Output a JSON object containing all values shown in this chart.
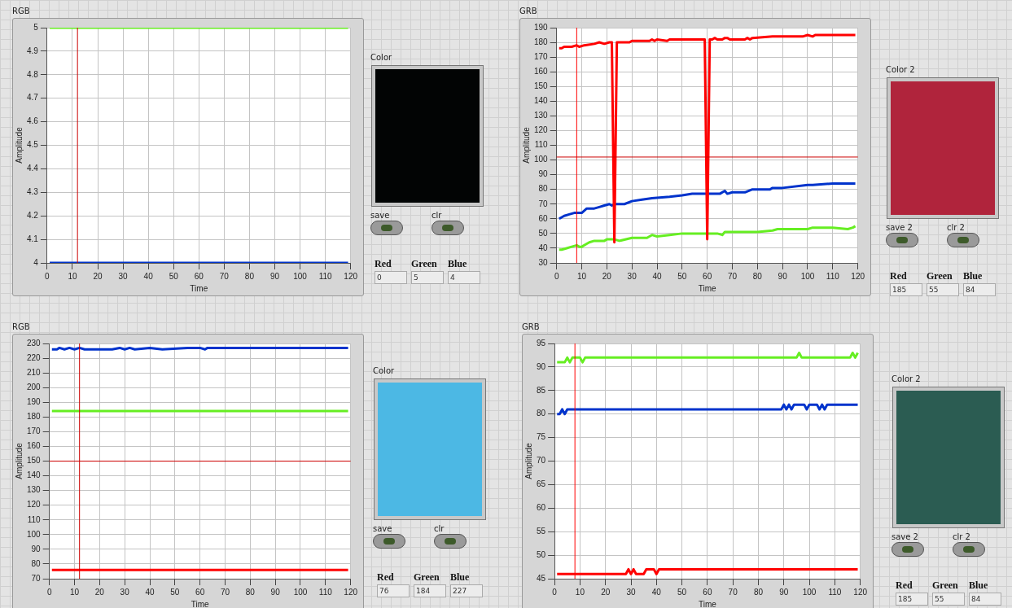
{
  "chart_data": [
    {
      "type": "line",
      "title": "RGB",
      "xlabel": "Time",
      "ylabel": "Amplitude",
      "xlim": [
        0,
        120
      ],
      "xticks": [
        0,
        10,
        20,
        30,
        40,
        50,
        60,
        70,
        80,
        90,
        100,
        110,
        120
      ],
      "ylim": [
        4,
        5
      ],
      "yticks": [
        4,
        4.1,
        4.2,
        4.3,
        4.4,
        4.5,
        4.6,
        4.7,
        4.8,
        4.9,
        5
      ],
      "grid": true,
      "legend": false,
      "marker": "none",
      "line_style": "solid",
      "series": [
        {
          "color": "#66ee22",
          "x": [
            1,
            119
          ],
          "values": [
            5,
            5
          ]
        },
        {
          "color": "#0033cc",
          "x": [
            1,
            119
          ],
          "values": [
            4,
            4
          ]
        }
      ],
      "ref_lines": [
        {
          "axis": "x",
          "value": 12,
          "color": "#cc0000"
        }
      ]
    },
    {
      "type": "other",
      "title": "Color",
      "color": "#020404",
      "annotations": [
        "save",
        "clr",
        "Red",
        "Green",
        "Blue",
        "0",
        "5",
        "4"
      ]
    },
    {
      "type": "line",
      "title": "GRB",
      "xlabel": "Time",
      "ylabel": "Amplitude",
      "xlim": [
        0,
        120
      ],
      "xticks": [
        0,
        10,
        20,
        30,
        40,
        50,
        60,
        70,
        80,
        90,
        100,
        110,
        120
      ],
      "ylim": [
        30,
        190
      ],
      "yticks": [
        30,
        40,
        50,
        60,
        70,
        80,
        90,
        100,
        110,
        120,
        130,
        140,
        150,
        160,
        170,
        180,
        190
      ],
      "grid": true,
      "legend": false,
      "marker": "none",
      "line_style": "solid",
      "series": [
        {
          "color": "#ff0000",
          "x": [
            1,
            2,
            3,
            6,
            8,
            9,
            11,
            15,
            17,
            19,
            21,
            22,
            23,
            24,
            25,
            29,
            30,
            37,
            38,
            39,
            40,
            44,
            45,
            59,
            60,
            61,
            62,
            63,
            64,
            66,
            67,
            68,
            69,
            75,
            76,
            77,
            78,
            86,
            98,
            100,
            102,
            103,
            119
          ],
          "values": [
            176,
            176,
            177,
            177,
            178,
            177,
            178,
            179,
            180,
            179,
            180,
            180,
            44,
            180,
            180,
            180,
            181,
            181,
            182,
            181,
            182,
            181,
            182,
            182,
            46,
            182,
            182,
            183,
            182,
            182,
            183,
            183,
            182,
            182,
            183,
            182,
            183,
            184,
            184,
            185,
            184,
            185,
            185
          ]
        },
        {
          "color": "#0033cc",
          "x": [
            1,
            2,
            3,
            5,
            7,
            10,
            12,
            15,
            17,
            19,
            21,
            22,
            23,
            27,
            30,
            34,
            38,
            45,
            50,
            54,
            60,
            65,
            67,
            68,
            70,
            75,
            78,
            80,
            85,
            86,
            90,
            100,
            102,
            110,
            112,
            119
          ],
          "values": [
            60,
            61,
            62,
            63,
            64,
            64,
            67,
            67,
            68,
            69,
            70,
            69,
            70,
            70,
            72,
            73,
            74,
            75,
            76,
            77,
            77,
            77,
            79,
            77,
            78,
            78,
            80,
            80,
            80,
            81,
            81,
            83,
            83,
            84,
            84,
            84
          ]
        },
        {
          "color": "#66ee22",
          "x": [
            1,
            2,
            4,
            6,
            8,
            9,
            10,
            12,
            13,
            15,
            19,
            20,
            23,
            25,
            30,
            36,
            38,
            40,
            45,
            50,
            60,
            64,
            66,
            67,
            80,
            86,
            88,
            94,
            100,
            102,
            110,
            116,
            118,
            119
          ],
          "values": [
            39,
            39,
            40,
            41,
            42,
            41,
            41,
            43,
            44,
            45,
            45,
            46,
            46,
            45,
            47,
            47,
            49,
            48,
            49,
            50,
            50,
            50,
            49,
            51,
            51,
            52,
            53,
            53,
            53,
            54,
            54,
            53,
            54,
            55
          ]
        }
      ],
      "ref_lines": [
        {
          "axis": "x",
          "value": 8,
          "color": "#ff0000"
        },
        {
          "axis": "y",
          "value": 102,
          "color": "#cc0000"
        }
      ]
    },
    {
      "type": "other",
      "title": "Color 2",
      "color": "#b0243c",
      "annotations": [
        "save 2",
        "clr 2",
        "Red",
        "Green",
        "Blue",
        "185",
        "55",
        "84"
      ]
    },
    {
      "type": "line",
      "title": "RGB",
      "xlabel": "Time",
      "ylabel": "Amplitude",
      "xlim": [
        0,
        120
      ],
      "xticks": [
        0,
        10,
        20,
        30,
        40,
        50,
        60,
        70,
        80,
        90,
        100,
        110,
        120
      ],
      "ylim": [
        70,
        230
      ],
      "yticks": [
        70,
        80,
        90,
        100,
        110,
        120,
        130,
        140,
        150,
        160,
        170,
        180,
        190,
        200,
        210,
        220,
        230
      ],
      "grid": true,
      "legend": false,
      "marker": "none",
      "line_style": "solid",
      "series": [
        {
          "color": "#0033cc",
          "x": [
            1,
            3,
            4,
            6,
            8,
            10,
            12,
            14,
            16,
            18,
            20,
            25,
            28,
            30,
            32,
            34,
            40,
            45,
            55,
            60,
            62,
            63,
            119
          ],
          "values": [
            226,
            226,
            227,
            226,
            227,
            226,
            227,
            226,
            226,
            226,
            226,
            226,
            227,
            226,
            227,
            226,
            227,
            226,
            227,
            227,
            226,
            227,
            227
          ]
        },
        {
          "color": "#66ee22",
          "x": [
            1,
            119
          ],
          "values": [
            184,
            184
          ]
        },
        {
          "color": "#ff0000",
          "x": [
            1,
            119
          ],
          "values": [
            76,
            76
          ]
        }
      ],
      "ref_lines": [
        {
          "axis": "x",
          "value": 12,
          "color": "#cc0000"
        },
        {
          "axis": "y",
          "value": 150,
          "color": "#cc0000"
        }
      ]
    },
    {
      "type": "other",
      "title": "Color",
      "color": "#4cb8e4",
      "annotations": [
        "save",
        "clr",
        "Red",
        "Green",
        "Blue",
        "76",
        "184",
        "227"
      ]
    },
    {
      "type": "line",
      "title": "GRB",
      "xlabel": "Time",
      "ylabel": "Amplitude",
      "xlim": [
        0,
        120
      ],
      "xticks": [
        0,
        10,
        20,
        30,
        40,
        50,
        60,
        70,
        80,
        90,
        100,
        110,
        120
      ],
      "ylim": [
        45,
        95
      ],
      "yticks": [
        45,
        50,
        55,
        60,
        65,
        70,
        75,
        80,
        85,
        90,
        95
      ],
      "grid": true,
      "legend": false,
      "marker": "none",
      "line_style": "solid",
      "series": [
        {
          "color": "#66ee22",
          "x": [
            1,
            4,
            5,
            6,
            7,
            10,
            11,
            12,
            95,
            96,
            97,
            116,
            117,
            118,
            119
          ],
          "values": [
            91,
            91,
            92,
            91,
            92,
            92,
            91,
            92,
            92,
            93,
            92,
            92,
            93,
            92,
            93
          ]
        },
        {
          "color": "#0033cc",
          "x": [
            1,
            2,
            3,
            4,
            5,
            89,
            90,
            91,
            92,
            93,
            94,
            98,
            99,
            100,
            103,
            104,
            105,
            106,
            107,
            119
          ],
          "values": [
            80,
            80,
            81,
            80,
            81,
            81,
            82,
            81,
            82,
            81,
            82,
            82,
            81,
            82,
            82,
            81,
            82,
            81,
            82,
            82
          ]
        },
        {
          "color": "#ff0000",
          "x": [
            1,
            28,
            29,
            30,
            31,
            32,
            35,
            36,
            39,
            40,
            41,
            119
          ],
          "values": [
            46,
            46,
            47,
            46,
            47,
            46,
            46,
            47,
            47,
            46,
            47,
            47
          ]
        }
      ],
      "ref_lines": [
        {
          "axis": "x",
          "value": 8,
          "color": "#ff0000"
        }
      ]
    },
    {
      "type": "other",
      "title": "Color 2",
      "color": "#2b5c52",
      "annotations": [
        "save 2",
        "clr 2",
        "Red",
        "Green",
        "Blue",
        "185",
        "55",
        "84"
      ]
    }
  ]
}
